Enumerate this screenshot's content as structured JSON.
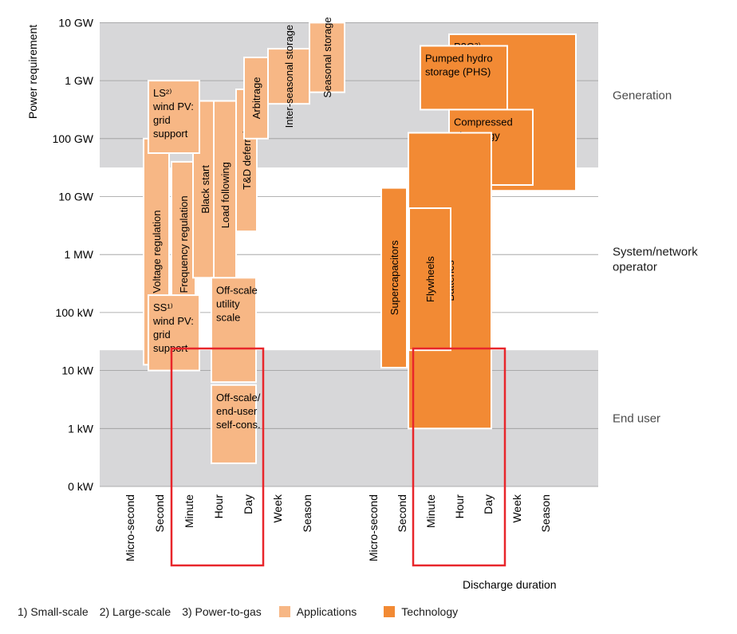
{
  "chart_data": {
    "type": "range-box diagram",
    "y_axis": {
      "label": "Power requirement",
      "ticks": [
        "0 kW",
        "1 kW",
        "10 kW",
        "100 kW",
        "1 MW",
        "10 GW",
        "100 GW",
        "1 GW",
        "10 GW"
      ]
    },
    "x_axis": {
      "label": "Discharge duration",
      "ticks_left": [
        "Micro-second",
        "Second",
        "Minute",
        "Hour",
        "Day",
        "Week",
        "Season"
      ],
      "ticks_right": [
        "Micro-second",
        "Second",
        "Minute",
        "Hour",
        "Day",
        "Week",
        "Season"
      ]
    },
    "bands": [
      {
        "label": "Generation",
        "from_tick": 5.5,
        "to_tick": 8.0
      },
      {
        "label": "System/network operator",
        "from_tick": 2.35,
        "to_tick": 5.5
      },
      {
        "label": "End user",
        "from_tick": 0.0,
        "to_tick": 2.35
      }
    ],
    "applications": [
      {
        "label": "Voltage regulation",
        "x": [
          1.1,
          1.3
        ],
        "y": [
          2.1,
          6.0
        ]
      },
      {
        "label": "Frequency regulation",
        "x": [
          1.5,
          2.2
        ],
        "y": [
          2.75,
          5.6
        ]
      },
      {
        "label": "Black start",
        "x": [
          2.25,
          2.9
        ],
        "y": [
          3.6,
          6.65
        ]
      },
      {
        "label": "Load following",
        "x": [
          2.7,
          3.4
        ],
        "y": [
          3.4,
          6.65
        ]
      },
      {
        "label": "T&D deferral",
        "x": [
          3.4,
          4.05
        ],
        "y": [
          4.4,
          6.85
        ]
      },
      {
        "label": "Arbitrage",
        "x": [
          4.05,
          4.75
        ],
        "y": [
          6.0,
          7.4
        ]
      },
      {
        "label": "Inter-seasonal storage",
        "x": [
          4.75,
          5.45
        ],
        "y": [
          6.6,
          7.55
        ]
      },
      {
        "label": "Seasonal storage",
        "x": [
          5.6,
          6.2
        ],
        "y": [
          6.8,
          8.0
        ]
      },
      {
        "label": "LS²⁾ wind PV: grid support",
        "x": [
          1.5,
          2.45
        ],
        "y": [
          5.75,
          7.0
        ]
      },
      {
        "label": "SS¹⁾ wind PV: grid support",
        "x": [
          1.5,
          2.45
        ],
        "y": [
          2.0,
          3.3
        ]
      },
      {
        "label": "Off-scale utility scale",
        "x": [
          2.9,
          3.7
        ],
        "y": [
          1.8,
          3.6
        ]
      },
      {
        "label": "Off-scale/ end-user self-cons.",
        "x": [
          2.9,
          3.7
        ],
        "y": [
          0.4,
          1.75
        ]
      }
    ],
    "technologies": [
      {
        "label": "Pumped hydro storage (PHS)",
        "x": [
          1.95,
          3.6
        ],
        "y": [
          6.5,
          7.6
        ]
      },
      {
        "label": "Compressed air energy storage (CAES)",
        "x": [
          3.0,
          4.2
        ],
        "y": [
          5.2,
          6.5
        ]
      },
      {
        "label": "P2G³⁾",
        "x": [
          3.0,
          5.6
        ],
        "y": [
          5.1,
          7.8
        ]
      },
      {
        "label": "Supercapacitors",
        "x": [
          1.15,
          1.85
        ],
        "y": [
          2.05,
          5.15
        ]
      },
      {
        "label": "Flywheels",
        "x": [
          1.8,
          2.6
        ],
        "y": [
          2.35,
          4.8
        ]
      },
      {
        "label": "Batteries",
        "x": [
          2.4,
          3.55
        ],
        "y": [
          1.0,
          6.1
        ]
      }
    ],
    "highlighted_ranges": [
      {
        "panel": "left",
        "from": "Minute",
        "to": "Day"
      },
      {
        "panel": "right",
        "from": "Minute",
        "to": "Day"
      }
    ],
    "legend": {
      "notes": [
        "1) Small-scale",
        "2) Large-scale",
        "3) Power-to-gas"
      ],
      "items": [
        {
          "label": "Applications",
          "color": "#f7b785"
        },
        {
          "label": "Technology",
          "color": "#f28a34"
        }
      ]
    },
    "colors": {
      "band_gray": "#d7d7d9",
      "applications": "#f7b785",
      "technology": "#f28a34",
      "highlight": "#e8262b",
      "gridline": "#9a9a9a"
    }
  }
}
